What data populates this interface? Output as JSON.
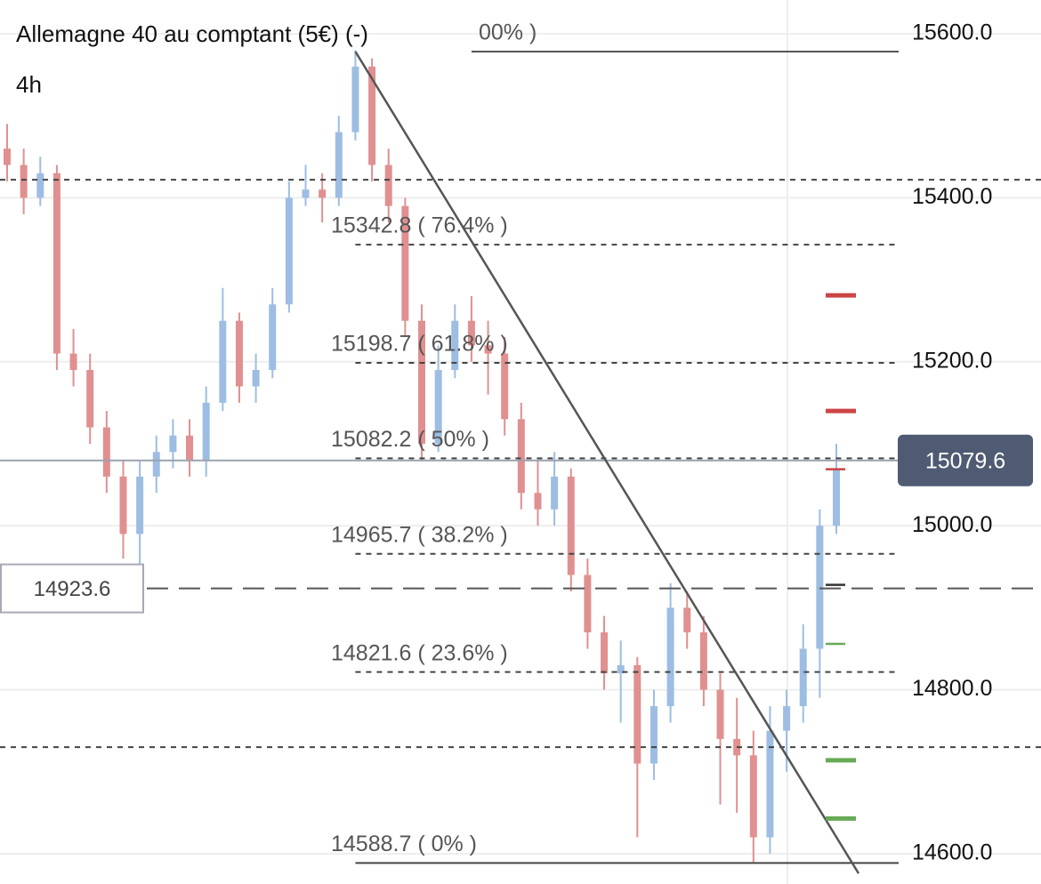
{
  "chart_data": {
    "type": "candlestick",
    "title": "Allemagne 40 au comptant (5€) (-)",
    "timeframe": "4h",
    "ylim": [
      14563.1,
      15641.2
    ],
    "yticks": [
      {
        "value": 15600,
        "label": "15600.0"
      },
      {
        "value": 15400,
        "label": "15400.0"
      },
      {
        "value": 15200,
        "label": "15200.0"
      },
      {
        "value": 15000,
        "label": "15000.0"
      },
      {
        "value": 14800,
        "label": "14800.0"
      },
      {
        "value": 14600,
        "label": "14600.0"
      }
    ],
    "grid": true,
    "up_color": "#9dbde3",
    "down_color": "#e09090",
    "series": [
      {
        "values": [
          [
            15460,
            15490,
            15420,
            15440
          ],
          [
            15440,
            15460,
            15380,
            15400
          ],
          [
            15400,
            15450,
            15390,
            15430
          ],
          [
            15430,
            15440,
            15190,
            15210
          ],
          [
            15210,
            15240,
            15170,
            15190
          ],
          [
            15190,
            15210,
            15100,
            15120
          ],
          [
            15120,
            15140,
            15040,
            15060
          ],
          [
            15060,
            15080,
            14960,
            14990
          ],
          [
            14990,
            15080,
            14950,
            15060
          ],
          [
            15060,
            15110,
            15040,
            15090
          ],
          [
            15090,
            15130,
            15070,
            15110
          ],
          [
            15110,
            15130,
            15060,
            15080
          ],
          [
            15080,
            15170,
            15060,
            15150
          ],
          [
            15150,
            15290,
            15140,
            15250
          ],
          [
            15250,
            15260,
            15150,
            15170
          ],
          [
            15170,
            15210,
            15150,
            15190
          ],
          [
            15190,
            15290,
            15180,
            15270
          ],
          [
            15270,
            15420,
            15260,
            15400
          ],
          [
            15400,
            15440,
            15390,
            15410
          ],
          [
            15410,
            15430,
            15370,
            15400
          ],
          [
            15400,
            15500,
            15390,
            15480
          ],
          [
            15480,
            15580,
            15470,
            15560
          ],
          [
            15560,
            15570,
            15420,
            15440
          ],
          [
            15440,
            15460,
            15370,
            15390
          ],
          [
            15390,
            15400,
            15230,
            15250
          ],
          [
            15250,
            15270,
            15080,
            15100
          ],
          [
            15100,
            15220,
            15090,
            15190
          ],
          [
            15190,
            15270,
            15180,
            15250
          ],
          [
            15250,
            15280,
            15200,
            15220
          ],
          [
            15220,
            15250,
            15160,
            15210
          ],
          [
            15210,
            15230,
            15110,
            15130
          ],
          [
            15130,
            15150,
            15020,
            15040
          ],
          [
            15040,
            15080,
            15000,
            15020
          ],
          [
            15020,
            15090,
            15000,
            15060
          ],
          [
            15060,
            15070,
            14920,
            14940
          ],
          [
            14940,
            14960,
            14850,
            14870
          ],
          [
            14870,
            14890,
            14800,
            14820
          ],
          [
            14820,
            14860,
            14760,
            14830
          ],
          [
            14830,
            14840,
            14620,
            14710
          ],
          [
            14710,
            14800,
            14690,
            14780
          ],
          [
            14780,
            14930,
            14760,
            14900
          ],
          [
            14900,
            14920,
            14850,
            14870
          ],
          [
            14870,
            14890,
            14780,
            14800
          ],
          [
            14800,
            14820,
            14660,
            14740
          ],
          [
            14740,
            14790,
            14650,
            14720
          ],
          [
            14720,
            14750,
            14590,
            14620
          ],
          [
            14620,
            14780,
            14600,
            14750
          ],
          [
            14750,
            14800,
            14700,
            14780
          ],
          [
            14780,
            14880,
            14760,
            14850
          ],
          [
            14850,
            15020,
            14790,
            15000
          ],
          [
            15000,
            15100,
            14990,
            15070
          ]
        ]
      }
    ],
    "fib_top": 15578.3,
    "fib_top_label": "00% )",
    "fib_levels": [
      {
        "value": 15342.8,
        "label": "15342.8 ( 76.4% )"
      },
      {
        "value": 15198.7,
        "label": "15198.7 ( 61.8% )"
      },
      {
        "value": 15082.2,
        "label": "15082.2 ( 50% )"
      },
      {
        "value": 14965.7,
        "label": "14965.7 ( 38.2% )"
      },
      {
        "value": 14821.6,
        "label": "14821.6 ( 23.6% )"
      },
      {
        "value": 14588.7,
        "label": "14588.7 ( 0% )"
      }
    ],
    "trendline": [
      15578.3,
      14576
    ],
    "dotted_lines": [
      15422,
      14730
    ],
    "level_line": 14923.6,
    "current_price": 15079.6,
    "markers": [
      {
        "value": 15281,
        "color": "#cc4444"
      },
      {
        "value": 15140,
        "color": "#cc4444"
      },
      {
        "value": 15069,
        "color": "#cc4444"
      },
      {
        "value": 14928,
        "color": "#333333"
      },
      {
        "value": 14856,
        "color": "#66aa55"
      },
      {
        "value": 14714,
        "color": "#66aa55"
      },
      {
        "value": 14643,
        "color": "#66aa55"
      }
    ]
  }
}
